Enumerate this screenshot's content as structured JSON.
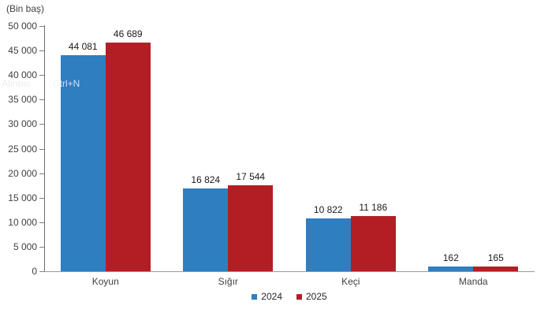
{
  "artifacts": {
    "ghost_text_left": "Alıntısı",
    "ghost_text_right": "Ctrl+N"
  },
  "chart_data": {
    "type": "bar",
    "title": "",
    "unit_label": "(Bin baş)",
    "xlabel": "",
    "ylabel": "(Bin baş)",
    "categories": [
      "Koyun",
      "Sığır",
      "Keçi",
      "Manda"
    ],
    "series": [
      {
        "name": "2024",
        "color": "#2E7EC0",
        "values": [
          44081,
          16824,
          10822,
          162
        ],
        "value_labels": [
          "44 081",
          "16 824",
          "10 822",
          "162"
        ]
      },
      {
        "name": "2025",
        "color": "#B21E23",
        "values": [
          46689,
          17544,
          11186,
          165
        ],
        "value_labels": [
          "46 689",
          "17 544",
          "11 186",
          "165"
        ]
      }
    ],
    "y_axis": {
      "min": 0,
      "max": 50000,
      "step": 5000,
      "tick_labels": [
        "0",
        "5 000",
        "10 000",
        "15 000",
        "20 000",
        "25 000",
        "30 000",
        "35 000",
        "40 000",
        "45 000",
        "50 000"
      ]
    },
    "grid": false,
    "legend_position": "bottom"
  }
}
